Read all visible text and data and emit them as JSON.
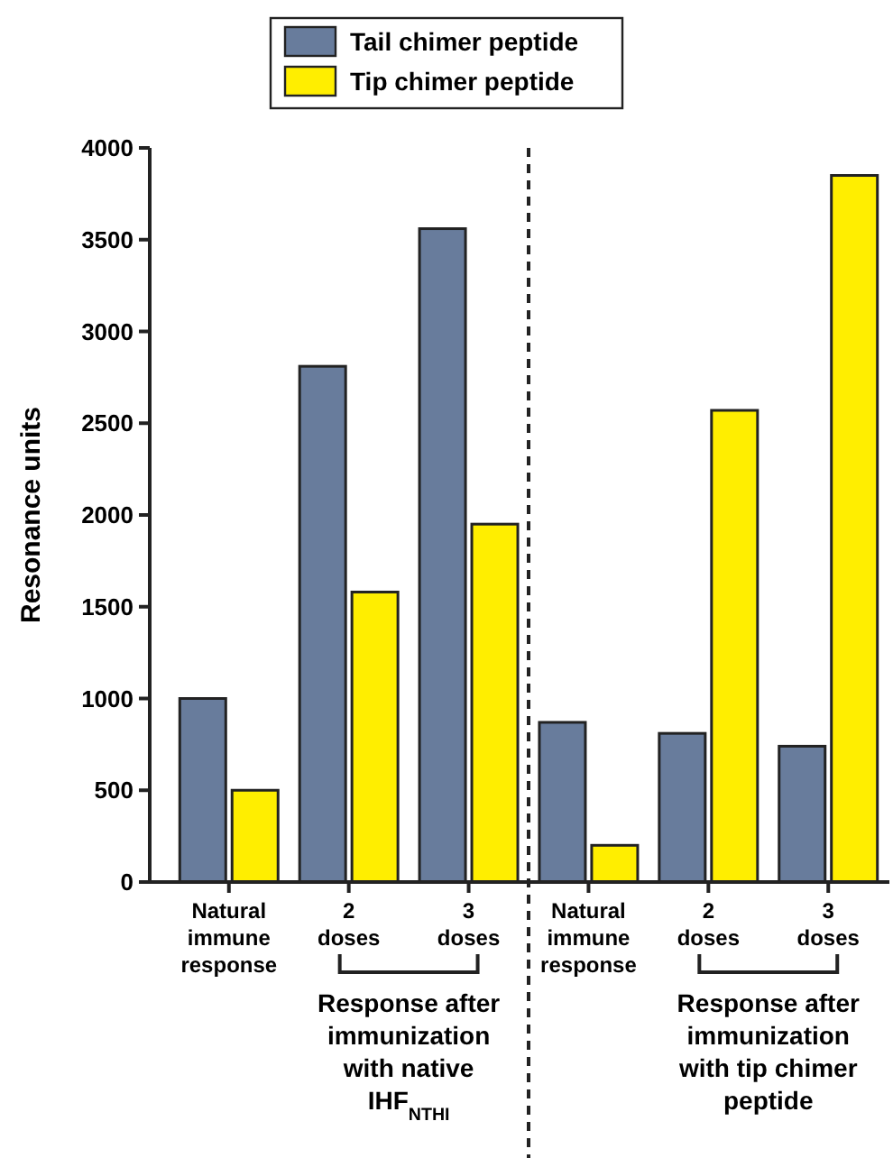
{
  "chart_data": {
    "type": "bar",
    "ylabel": "Resonance units",
    "categories": [
      "Natural immune response",
      "2 doses",
      "3 doses",
      "Natural immune response",
      "2 doses",
      "3 doses"
    ],
    "series": [
      {
        "name": "Tail chimer peptide",
        "color": "#687c9c",
        "values": [
          1000,
          2810,
          3560,
          870,
          810,
          740
        ]
      },
      {
        "name": "Tip chimer peptide",
        "color": "#ffee00",
        "values": [
          500,
          1580,
          1950,
          200,
          2570,
          3850
        ]
      }
    ],
    "ylim": [
      0,
      4000
    ],
    "yticks": [
      0,
      500,
      1000,
      1500,
      2000,
      2500,
      3000,
      3500,
      4000
    ],
    "annotations": [
      "Response after immunization with native IHF$_{NTHI}$",
      "Response after immunization with tip chimer peptide"
    ],
    "legend": "top",
    "grid": false
  }
}
